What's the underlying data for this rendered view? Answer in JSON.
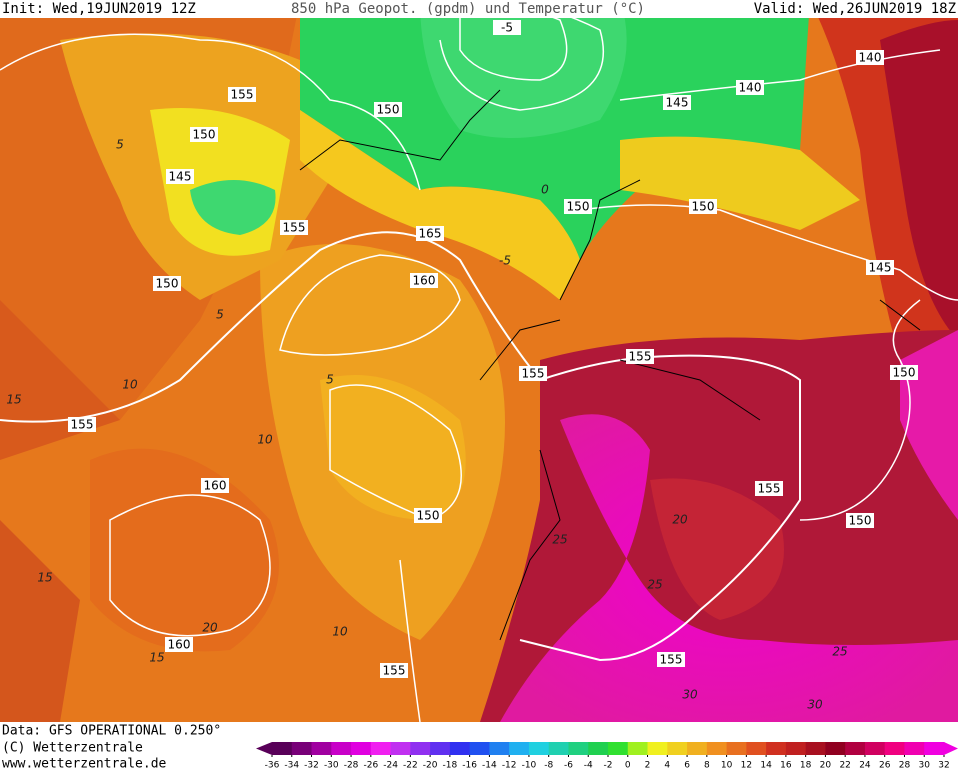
{
  "header": {
    "init": "Init: Wed,19JUN2019 12Z",
    "title": "850 hPa Geopot. (gpdm) und Temperatur (°C)",
    "valid": "Valid: Wed,26JUN2019 18Z"
  },
  "footer": {
    "data": "Data: GFS OPERATIONAL 0.250°",
    "copyright": "(C) Wetterzentrale",
    "url": "www.wetterzentrale.de"
  },
  "colorbar": {
    "ticks": [
      -36,
      -34,
      -32,
      -30,
      -28,
      -26,
      -24,
      -22,
      -20,
      -18,
      -16,
      -14,
      -12,
      -10,
      -8,
      -6,
      -4,
      -2,
      0,
      2,
      4,
      6,
      8,
      10,
      12,
      14,
      16,
      18,
      20,
      22,
      24,
      26,
      28,
      30,
      32
    ],
    "colors": [
      "#580058",
      "#780078",
      "#a000a0",
      "#c800c8",
      "#e000e0",
      "#f020f0",
      "#c030f0",
      "#9030f0",
      "#6030f0",
      "#3030f0",
      "#2050f0",
      "#2080f0",
      "#20b0f0",
      "#20d0e0",
      "#20d0b0",
      "#20d080",
      "#20d050",
      "#30e030",
      "#a0f020",
      "#f0f020",
      "#f0d020",
      "#f0b020",
      "#f09020",
      "#e87020",
      "#e05020",
      "#d03020",
      "#c02020",
      "#a81020",
      "#900020",
      "#b00040",
      "#d00060",
      "#f00080",
      "#f000b0",
      "#f000e0"
    ]
  },
  "geopotential_labels": [
    -5,
    155,
    150,
    145,
    155,
    150,
    150,
    165,
    160,
    150,
    150,
    145,
    140,
    145,
    140,
    155,
    155,
    150,
    155,
    160,
    150,
    155,
    150,
    160,
    155,
    155
  ],
  "temperature_labels": [
    5,
    5,
    0,
    10,
    10,
    15,
    15,
    20,
    25,
    25,
    30,
    30,
    -5,
    5,
    10,
    15,
    20,
    25
  ]
}
